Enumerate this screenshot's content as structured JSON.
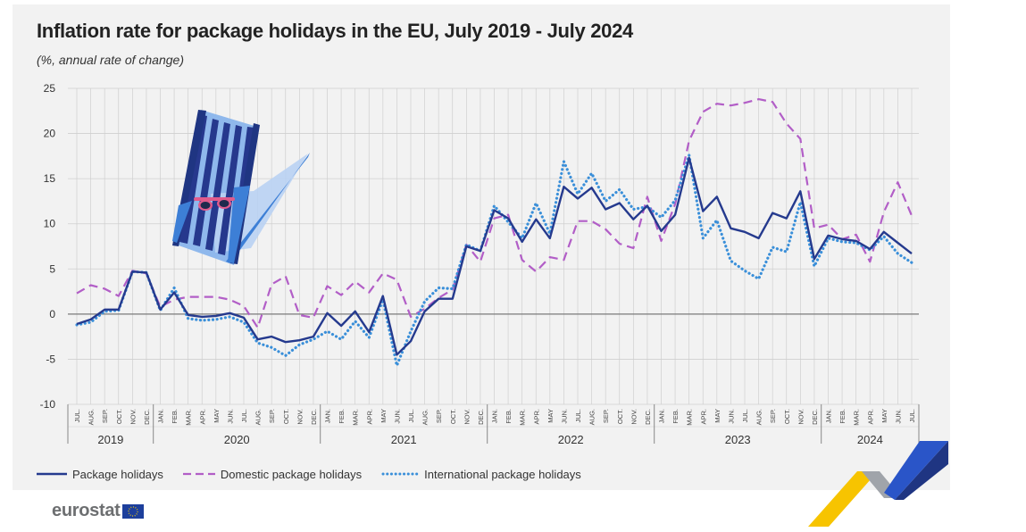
{
  "title": "Inflation rate for package holidays in the EU, July 2019 - July 2024",
  "subtitle": "(%, annual rate of change)",
  "logo": {
    "text": "eurostat"
  },
  "colors": {
    "package": "#253a8e",
    "domestic": "#b25ec7",
    "international": "#3a8fd9",
    "zero_line": "#7a7a7a",
    "grid": "#cfcfcf"
  },
  "icons": [
    "beach-chair-icon",
    "sunglasses-icon",
    "eu-flag-icon"
  ],
  "chart_data": {
    "type": "line",
    "title": "Inflation rate for package holidays in the EU, July 2019 - July 2024",
    "ylabel": "(%, annual rate of change)",
    "ylim": [
      -10,
      25
    ],
    "yticks": [
      25,
      20,
      15,
      10,
      5,
      0,
      -5,
      -10
    ],
    "grid": true,
    "legend_position": "bottom",
    "x": [
      "JUL.",
      "AUG.",
      "SEP.",
      "OCT.",
      "NOV.",
      "DEC.",
      "JAN.",
      "FEB.",
      "MAR.",
      "APR.",
      "MAY",
      "JUN.",
      "JUL.",
      "AUG.",
      "SEP.",
      "OCT.",
      "NOV.",
      "DEC.",
      "JAN.",
      "FEB.",
      "MAR.",
      "APR.",
      "MAY",
      "JUN.",
      "JUL.",
      "AUG.",
      "SEP.",
      "OCT.",
      "NOV.",
      "DEC.",
      "JAN.",
      "FEB.",
      "MAR.",
      "APR.",
      "MAY",
      "JUN.",
      "JUL.",
      "AUG.",
      "SEP.",
      "OCT.",
      "NOV.",
      "DEC.",
      "JAN.",
      "FEB.",
      "MAR.",
      "APR.",
      "MAY",
      "JUN.",
      "JUL.",
      "AUG.",
      "SEP.",
      "OCT.",
      "NOV.",
      "DEC.",
      "JAN.",
      "FEB.",
      "MAR.",
      "APR.",
      "MAY",
      "JUN.",
      "JUL."
    ],
    "years": [
      {
        "label": "2019",
        "start": 0,
        "end": 5
      },
      {
        "label": "2020",
        "start": 6,
        "end": 17
      },
      {
        "label": "2021",
        "start": 18,
        "end": 29
      },
      {
        "label": "2022",
        "start": 30,
        "end": 41
      },
      {
        "label": "2023",
        "start": 42,
        "end": 53
      },
      {
        "label": "2024",
        "start": 54,
        "end": 60
      }
    ],
    "series": [
      {
        "name": "Package holidays",
        "style": "solid",
        "values": [
          -1.1,
          -0.6,
          0.5,
          0.5,
          4.7,
          4.6,
          0.5,
          2.4,
          -0.1,
          -0.3,
          -0.2,
          0.1,
          -0.4,
          -2.8,
          -2.5,
          -3.1,
          -2.9,
          -2.5,
          0.1,
          -1.3,
          0.3,
          -2.0,
          2.0,
          -4.5,
          -3.0,
          0.3,
          1.7,
          1.7,
          7.5,
          7.0,
          11.5,
          10.6,
          8.0,
          10.5,
          8.4,
          14.1,
          12.8,
          14.0,
          11.6,
          12.3,
          10.5,
          12.0,
          9.2,
          11.0,
          17.3,
          11.4,
          13.0,
          9.5,
          9.1,
          8.4,
          11.2,
          10.6,
          13.6,
          6.1,
          8.7,
          8.3,
          8.1,
          7.2,
          9.1,
          7.9,
          6.7
        ]
      },
      {
        "name": "Domestic package holidays",
        "style": "dashed",
        "values": [
          2.3,
          3.2,
          2.8,
          2.0,
          4.8,
          4.5,
          0.8,
          1.6,
          1.9,
          1.9,
          1.9,
          1.6,
          0.9,
          -1.5,
          3.3,
          4.2,
          -0.1,
          -0.4,
          3.1,
          2.1,
          3.6,
          2.4,
          4.5,
          3.8,
          -0.3,
          0.6,
          1.8,
          2.7,
          7.7,
          5.8,
          10.6,
          11.0,
          6.0,
          4.7,
          6.3,
          6.0,
          10.3,
          10.3,
          9.4,
          7.8,
          7.3,
          13.0,
          8.1,
          12.2,
          19.2,
          22.4,
          23.3,
          23.1,
          23.4,
          23.8,
          23.5,
          21.1,
          19.4,
          9.5,
          9.9,
          8.3,
          8.8,
          5.8,
          11.3,
          14.6,
          10.9
        ]
      },
      {
        "name": "International package holidays",
        "style": "dotted",
        "values": [
          -1.2,
          -0.9,
          0.3,
          0.4,
          4.7,
          4.6,
          0.4,
          2.9,
          -0.5,
          -0.7,
          -0.6,
          -0.3,
          -0.9,
          -3.2,
          -3.7,
          -4.6,
          -3.4,
          -2.8,
          -1.9,
          -2.8,
          -0.8,
          -2.6,
          1.6,
          -5.7,
          -1.9,
          1.4,
          2.9,
          2.8,
          7.7,
          7.0,
          12.0,
          10.2,
          8.4,
          12.3,
          8.9,
          16.9,
          13.3,
          15.6,
          12.5,
          13.8,
          11.6,
          11.9,
          10.7,
          12.6,
          17.6,
          8.4,
          10.4,
          5.9,
          4.8,
          3.9,
          7.4,
          6.9,
          12.4,
          5.3,
          8.4,
          8.0,
          7.9,
          7.1,
          8.6,
          6.7,
          5.7
        ]
      }
    ]
  }
}
